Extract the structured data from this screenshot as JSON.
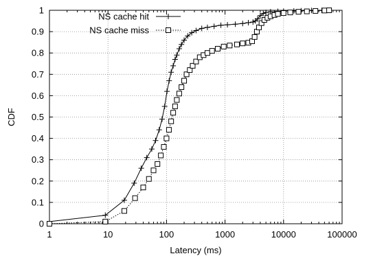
{
  "chart_data": {
    "type": "line",
    "title": "",
    "xlabel": "Latency (ms)",
    "ylabel": "CDF",
    "xscale": "log",
    "xlim": [
      1,
      100000
    ],
    "ylim": [
      0,
      1
    ],
    "xticks": [
      1,
      10,
      100,
      1000,
      10000,
      100000
    ],
    "xtick_labels": [
      "1",
      "10",
      "100",
      "1000",
      "10000",
      "100000"
    ],
    "yticks": [
      0,
      0.1,
      0.2,
      0.3,
      0.4,
      0.5,
      0.6,
      0.7,
      0.8,
      0.9,
      1
    ],
    "ytick_labels": [
      "0",
      "0.1",
      "0.2",
      "0.3",
      "0.4",
      "0.5",
      "0.6",
      "0.7",
      "0.8",
      "0.9",
      "1"
    ],
    "grid": true,
    "legend_position": "top-left",
    "series": [
      {
        "name": "NS cache hit",
        "marker": "plus",
        "line_style": "solid",
        "color": "#000000",
        "x": [
          1,
          9,
          19,
          28,
          37,
          46,
          56,
          65,
          75,
          84,
          93,
          102,
          111,
          120,
          130,
          140,
          150,
          165,
          180,
          200,
          230,
          270,
          320,
          400,
          500,
          650,
          850,
          1100,
          1500,
          2000,
          2500,
          3000,
          3300,
          3600,
          4000,
          4500,
          5000,
          6000,
          8000,
          10000,
          15000,
          20000,
          30000,
          45000,
          60000
        ],
        "y": [
          0.01,
          0.04,
          0.11,
          0.19,
          0.26,
          0.31,
          0.35,
          0.39,
          0.44,
          0.49,
          0.55,
          0.62,
          0.67,
          0.71,
          0.74,
          0.77,
          0.79,
          0.82,
          0.84,
          0.86,
          0.88,
          0.895,
          0.905,
          0.915,
          0.92,
          0.925,
          0.93,
          0.932,
          0.935,
          0.938,
          0.942,
          0.945,
          0.95,
          0.96,
          0.975,
          0.985,
          0.99,
          0.993,
          0.995,
          0.996,
          0.997,
          0.998,
          0.999,
          0.9995,
          1.0
        ]
      },
      {
        "name": "NS cache miss",
        "marker": "square",
        "line_style": "dotted",
        "color": "#000000",
        "x": [
          1,
          9,
          19,
          29,
          40,
          50,
          60,
          70,
          80,
          90,
          100,
          110,
          120,
          130,
          140,
          150,
          165,
          180,
          200,
          220,
          250,
          280,
          320,
          370,
          430,
          500,
          600,
          750,
          950,
          1200,
          1600,
          2000,
          2500,
          2900,
          3200,
          3500,
          3800,
          4200,
          4700,
          5300,
          6000,
          7000,
          8000,
          10000,
          13000,
          18000,
          25000,
          35000,
          50000,
          60000
        ],
        "y": [
          0.0,
          0.01,
          0.06,
          0.12,
          0.17,
          0.21,
          0.25,
          0.28,
          0.32,
          0.36,
          0.4,
          0.44,
          0.48,
          0.52,
          0.55,
          0.58,
          0.61,
          0.64,
          0.67,
          0.7,
          0.72,
          0.74,
          0.76,
          0.78,
          0.79,
          0.8,
          0.81,
          0.82,
          0.83,
          0.835,
          0.84,
          0.845,
          0.848,
          0.855,
          0.875,
          0.9,
          0.92,
          0.94,
          0.955,
          0.965,
          0.972,
          0.978,
          0.983,
          0.987,
          0.99,
          0.993,
          0.995,
          0.997,
          0.999,
          1.0
        ]
      }
    ]
  }
}
